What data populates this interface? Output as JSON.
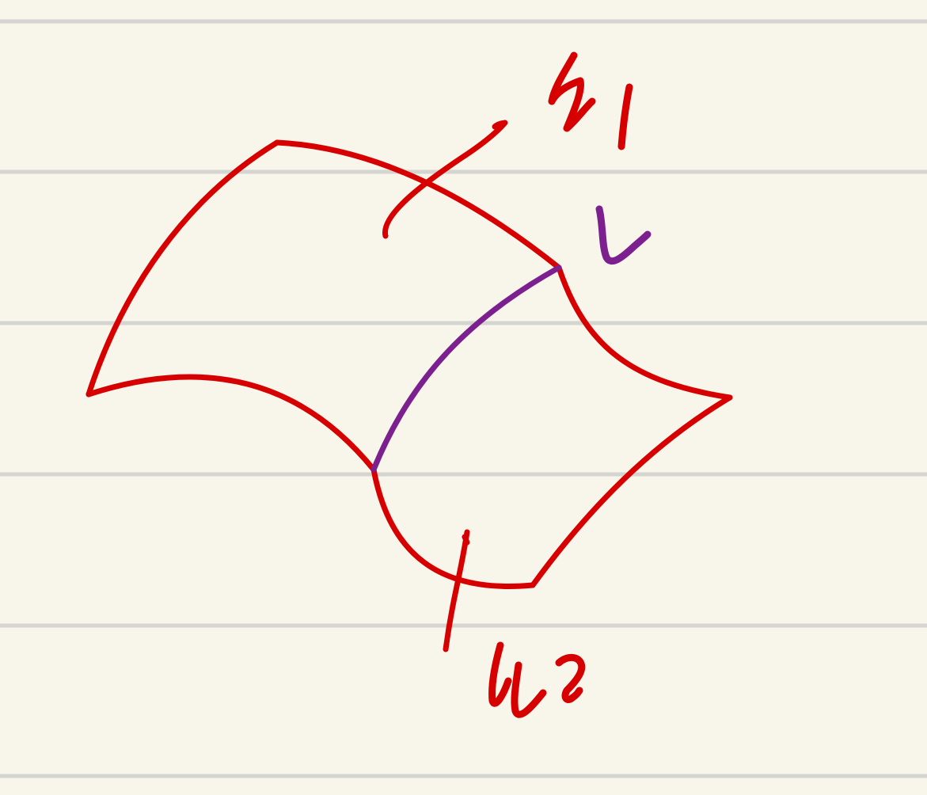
{
  "ink_colors": {
    "paper": "#f8f5ea",
    "rule_line": "#d4d4d0",
    "red": "#d60000",
    "purple": "#7c1f8f"
  },
  "labels": {
    "u1": "u1",
    "u2": "u2",
    "v": "v"
  }
}
